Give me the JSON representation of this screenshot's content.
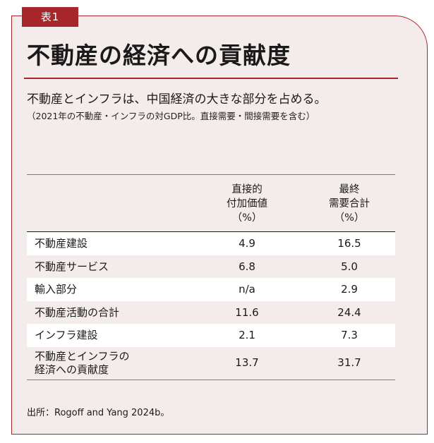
{
  "tag": "表1",
  "title": "不動産の経済への貢献度",
  "subtitle": "不動産とインフラは、中国経済の大きな部分を占める。",
  "note": "（2021年の不動産・インフラの対GDP比。直接需要・間接需要を含む）",
  "table": {
    "headers": [
      {
        "lines": [
          "直接的",
          "付加価値",
          "（%）"
        ]
      },
      {
        "lines": [
          "最終",
          "需要合計",
          "（%）"
        ]
      }
    ],
    "rows": [
      {
        "label": [
          "不動産建設"
        ],
        "direct": "4.9",
        "final": "16.5"
      },
      {
        "label": [
          "不動産サービス"
        ],
        "direct": "6.8",
        "final": "5.0"
      },
      {
        "label": [
          "輸入部分"
        ],
        "direct": "n/a",
        "final": "2.9"
      },
      {
        "label": [
          "不動産活動の合計"
        ],
        "direct": "11.6",
        "final": "24.4"
      },
      {
        "label": [
          "インフラ建設"
        ],
        "direct": "2.1",
        "final": "7.3"
      },
      {
        "label": [
          "不動産とインフラの",
          "経済への貢献度"
        ],
        "direct": "13.7",
        "final": "31.7"
      }
    ]
  },
  "source": "出所：Rogoff and Yang 2024b。",
  "colors": {
    "accent": "#a7262b",
    "panel_background": "#f4ecea",
    "row_highlight": "#ffffff"
  }
}
